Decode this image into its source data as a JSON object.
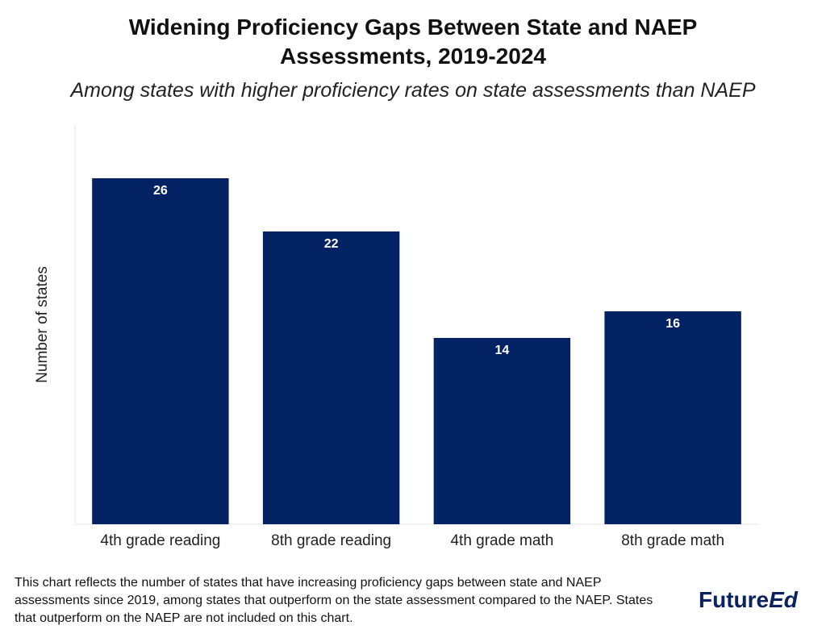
{
  "chart_data": {
    "type": "bar",
    "title": "Widening Proficiency Gaps Between State and NAEP Assessments, 2019-2024",
    "subtitle": "Among states with higher proficiency rates on state assessments than NAEP",
    "y_label": "Number of states",
    "categories": [
      "4th grade reading",
      "8th grade reading",
      "4th grade math",
      "8th grade math"
    ],
    "values": [
      26,
      22,
      14,
      16
    ],
    "color": "#032263",
    "ylim": [
      0,
      30
    ],
    "note": "This chart reflects the number of states that have increasing proficiency gaps between state and NAEP assessments since 2019, among states that outperform on the state assessment compared to the NAEP. States that outperform on the NAEP are not included on this chart.",
    "logo": [
      "Future",
      "Ed"
    ]
  }
}
